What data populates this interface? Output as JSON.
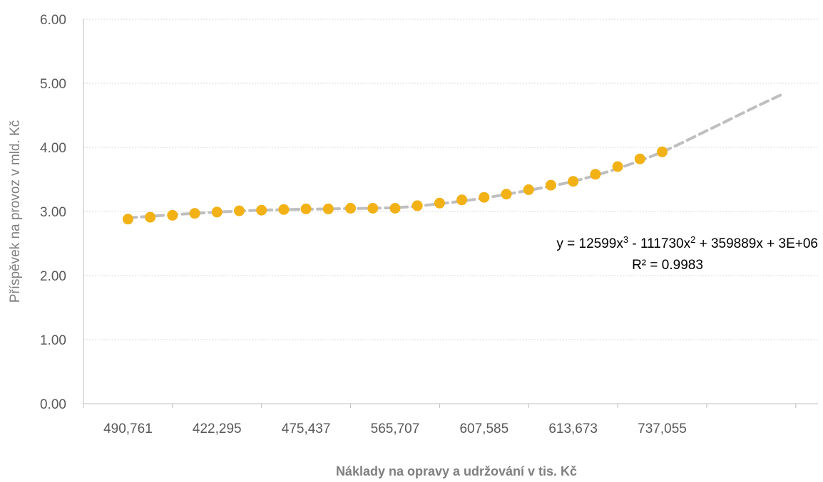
{
  "chart_data": {
    "type": "scatter",
    "xlabel": "Náklady na opravy a udržování v tis. Kč",
    "ylabel": "Příspěvek na provoz v mld. Kč",
    "ylim": [
      0,
      6
    ],
    "yticks": [
      "0.00",
      "1.00",
      "2.00",
      "3.00",
      "4.00",
      "5.00",
      "6.00"
    ],
    "xtick_labels": [
      "490,761",
      "422,295",
      "475,437",
      "565,707",
      "607,585",
      "613,673",
      "737,055"
    ],
    "x_range": [
      0,
      33
    ],
    "grid": "horizontal dotted",
    "point_color": "#F2B115",
    "trend_color": "#BFBFBF",
    "points": [
      {
        "x": 2,
        "y": 2.88
      },
      {
        "x": 3,
        "y": 2.91
      },
      {
        "x": 4,
        "y": 2.94
      },
      {
        "x": 5,
        "y": 2.97
      },
      {
        "x": 6,
        "y": 2.99
      },
      {
        "x": 7,
        "y": 3.01
      },
      {
        "x": 8,
        "y": 3.02
      },
      {
        "x": 9,
        "y": 3.03
      },
      {
        "x": 10,
        "y": 3.04
      },
      {
        "x": 11,
        "y": 3.04
      },
      {
        "x": 12,
        "y": 3.05
      },
      {
        "x": 13,
        "y": 3.05
      },
      {
        "x": 14,
        "y": 3.05
      },
      {
        "x": 15,
        "y": 3.09
      },
      {
        "x": 16,
        "y": 3.13
      },
      {
        "x": 17,
        "y": 3.18
      },
      {
        "x": 18,
        "y": 3.22
      },
      {
        "x": 19,
        "y": 3.27
      },
      {
        "x": 20,
        "y": 3.34
      },
      {
        "x": 21,
        "y": 3.41
      },
      {
        "x": 22,
        "y": 3.47
      },
      {
        "x": 23,
        "y": 3.58
      },
      {
        "x": 24,
        "y": 3.7
      },
      {
        "x": 25,
        "y": 3.82
      },
      {
        "x": 26,
        "y": 3.93
      }
    ],
    "trendline": {
      "type": "polynomial",
      "order": 3,
      "points": [
        {
          "x": 2,
          "y": 2.9
        },
        {
          "x": 5,
          "y": 2.97
        },
        {
          "x": 8,
          "y": 3.02
        },
        {
          "x": 11,
          "y": 3.04
        },
        {
          "x": 14,
          "y": 3.06
        },
        {
          "x": 16,
          "y": 3.12
        },
        {
          "x": 18,
          "y": 3.21
        },
        {
          "x": 20,
          "y": 3.33
        },
        {
          "x": 22,
          "y": 3.47
        },
        {
          "x": 24,
          "y": 3.67
        },
        {
          "x": 26,
          "y": 3.93
        },
        {
          "x": 28,
          "y": 4.26
        },
        {
          "x": 30,
          "y": 4.6
        },
        {
          "x": 31.4,
          "y": 4.83
        }
      ],
      "equation_parts": {
        "a": "y = 12599x",
        "a_exp": "3",
        "b": " - 111730x",
        "b_exp": "2",
        "c": " + 359889x + 3E+06"
      },
      "r_squared": "R² = 0.9983"
    }
  }
}
